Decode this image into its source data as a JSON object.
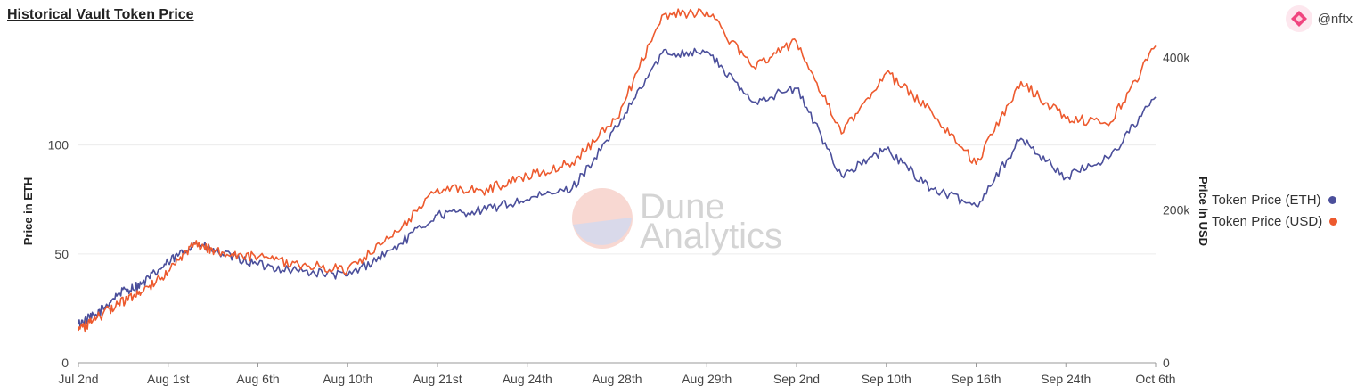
{
  "header": {
    "title": "Historical Vault Token Price",
    "handle": "@nftx",
    "avatar_icon": "nftx-logo-icon"
  },
  "watermark": {
    "line1": "Dune",
    "line2": "Analytics"
  },
  "colors": {
    "eth": "#4b4f9b",
    "usd": "#ed5a2e",
    "grid": "#ececec"
  },
  "chart_data": {
    "type": "line",
    "title": "Historical Vault Token Price",
    "xlabel": "",
    "x_ticks": [
      "Jul 2nd",
      "Aug 1st",
      "Aug 6th",
      "Aug 10th",
      "Aug 21st",
      "Aug 24th",
      "Aug 28th",
      "Aug 29th",
      "Sep 2nd",
      "Sep 10th",
      "Sep 16th",
      "Sep 24th",
      "Oct 6th"
    ],
    "y_left": {
      "label": "Price in ETH",
      "ticks": [
        0,
        50,
        100
      ],
      "range": [
        0,
        142
      ]
    },
    "y_right": {
      "label": "Price in USD",
      "ticks": [
        "0",
        "200k",
        "400k"
      ],
      "tick_values": [
        0,
        200000,
        400000
      ],
      "range": [
        0,
        405000
      ]
    },
    "grid": true,
    "legend_position": "right",
    "series": [
      {
        "name": "Token Price (ETH)",
        "axis": "left",
        "x": [
          0,
          0.2,
          0.45,
          0.7,
          1.0,
          1.3,
          1.6,
          2.0,
          2.5,
          3.0,
          3.5,
          4.0,
          4.5,
          5.0,
          5.5,
          6.0,
          6.5,
          7.0,
          7.5,
          8.0,
          8.5,
          9.0,
          9.5,
          10.0,
          10.5,
          11.0,
          11.5,
          12.0
        ],
        "y": [
          18,
          22,
          32,
          36,
          46,
          55,
          50,
          45,
          42,
          40,
          52,
          68,
          70,
          75,
          80,
          108,
          142,
          143,
          120,
          126,
          86,
          98,
          80,
          72,
          103,
          85,
          95,
          122
        ]
      },
      {
        "name": "Token Price (USD)",
        "axis": "right",
        "x": [
          0,
          0.2,
          0.45,
          0.7,
          1.0,
          1.3,
          1.6,
          2.0,
          2.5,
          3.0,
          3.5,
          4.0,
          4.5,
          5.0,
          5.5,
          6.0,
          6.5,
          7.0,
          7.5,
          8.0,
          8.5,
          9.0,
          9.5,
          10.0,
          10.5,
          11.0,
          11.5,
          12.0
        ],
        "y": [
          42000,
          58000,
          78000,
          92000,
          120000,
          155000,
          145000,
          138000,
          128000,
          122000,
          165000,
          228000,
          225000,
          245000,
          262000,
          320000,
          455000,
          460000,
          388000,
          420000,
          300000,
          380000,
          330000,
          260000,
          368000,
          320000,
          315000,
          415000
        ]
      }
    ]
  }
}
